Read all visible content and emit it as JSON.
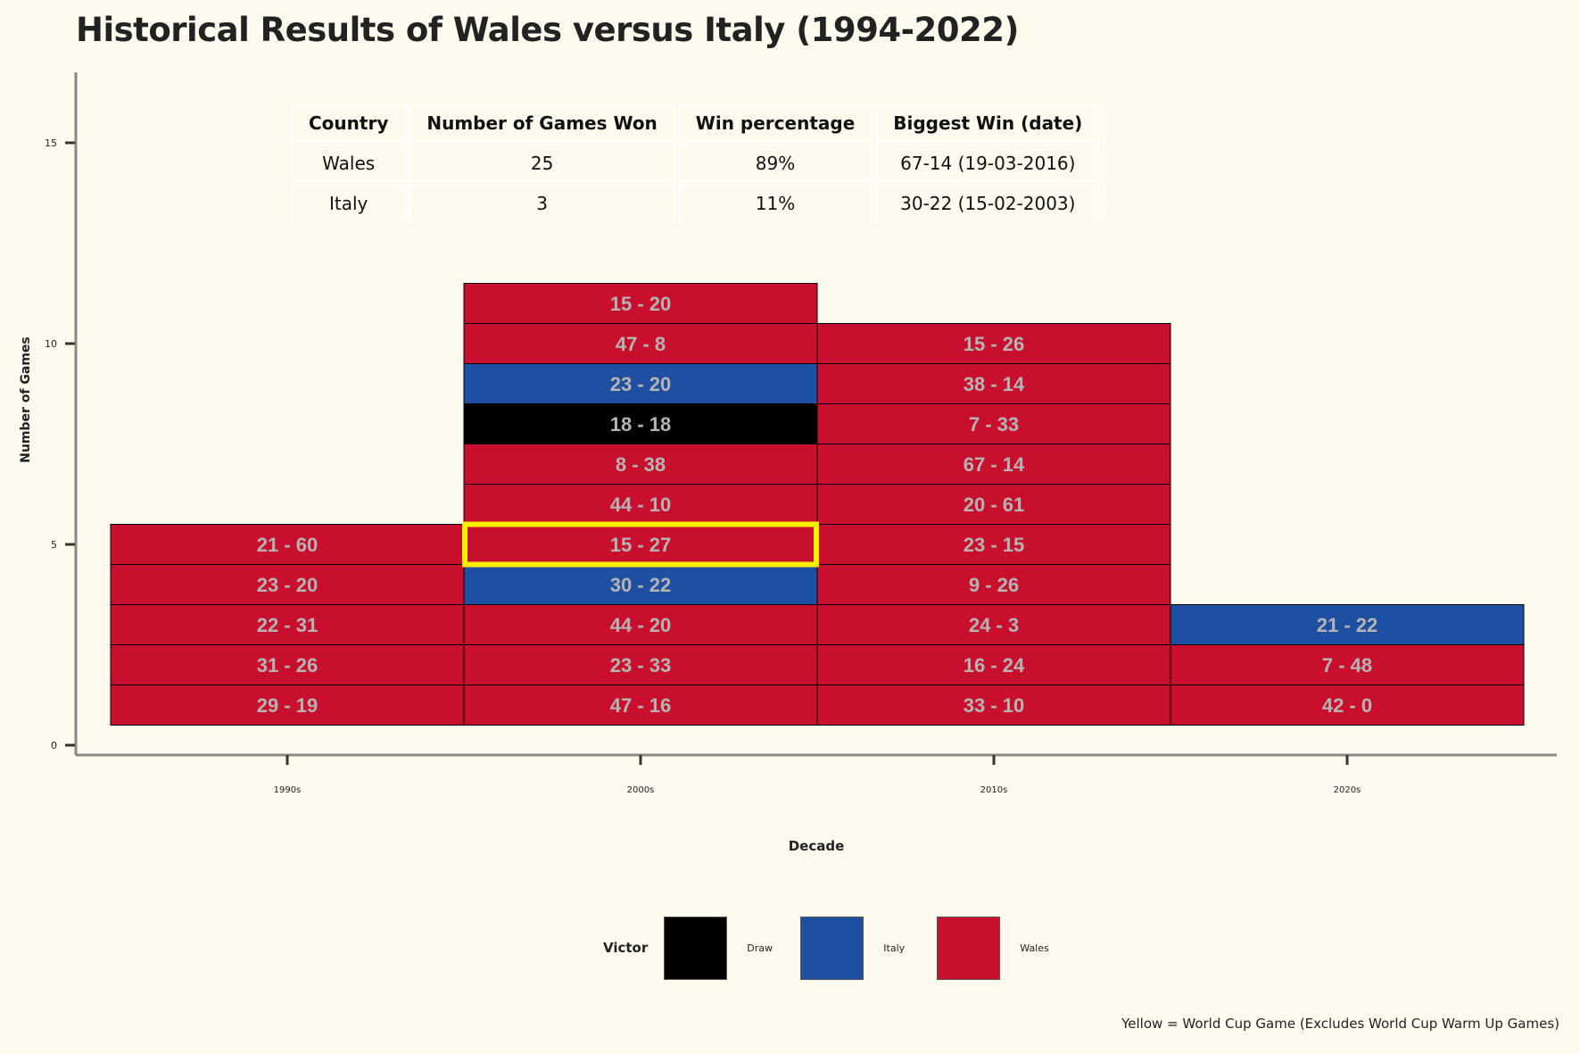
{
  "chart_data": {
    "type": "bar",
    "subtype": "stacked-tile",
    "title": "Historical Results of Wales versus Italy (1994-2022)",
    "xlabel": "Decade",
    "ylabel": "Number of Games",
    "categories": [
      "1990s",
      "2000s",
      "2010s",
      "2020s"
    ],
    "y_ticks": [
      0,
      5,
      10,
      15
    ],
    "ylim": [
      0,
      17
    ],
    "grid": false,
    "legend": {
      "title": "Victor",
      "placement": "bottom",
      "entries": [
        {
          "label": "Draw",
          "color": "#000000"
        },
        {
          "label": "Italy",
          "color": "#1f4fa0"
        },
        {
          "label": "Wales",
          "color": "#c8102e"
        }
      ]
    },
    "colors": {
      "Wales": "#c8102e",
      "Italy": "#1f4fa0",
      "Draw": "#000000",
      "world_cup_outline": "#ffee00"
    },
    "games": {
      "1990s": [
        {
          "score": "29 - 19",
          "victor": "Wales"
        },
        {
          "score": "31 - 26",
          "victor": "Wales"
        },
        {
          "score": "22 - 31",
          "victor": "Wales"
        },
        {
          "score": "23 - 20",
          "victor": "Wales"
        },
        {
          "score": "21 - 60",
          "victor": "Wales"
        }
      ],
      "2000s": [
        {
          "score": "47 - 16",
          "victor": "Wales"
        },
        {
          "score": "23 - 33",
          "victor": "Wales"
        },
        {
          "score": "44 - 20",
          "victor": "Wales"
        },
        {
          "score": "30 - 22",
          "victor": "Italy"
        },
        {
          "score": "15 - 27",
          "victor": "Wales",
          "world_cup": true
        },
        {
          "score": "44 - 10",
          "victor": "Wales"
        },
        {
          "score": "8 - 38",
          "victor": "Wales"
        },
        {
          "score": "18 - 18",
          "victor": "Draw"
        },
        {
          "score": "23 - 20",
          "victor": "Italy"
        },
        {
          "score": "47 - 8",
          "victor": "Wales"
        },
        {
          "score": "15 - 20",
          "victor": "Wales"
        }
      ],
      "2010s": [
        {
          "score": "33 - 10",
          "victor": "Wales"
        },
        {
          "score": "16 - 24",
          "victor": "Wales"
        },
        {
          "score": "24 - 3",
          "victor": "Wales"
        },
        {
          "score": "9 - 26",
          "victor": "Wales"
        },
        {
          "score": "23 - 15",
          "victor": "Wales"
        },
        {
          "score": "20 - 61",
          "victor": "Wales"
        },
        {
          "score": "67 - 14",
          "victor": "Wales"
        },
        {
          "score": "7 - 33",
          "victor": "Wales"
        },
        {
          "score": "38 - 14",
          "victor": "Wales"
        },
        {
          "score": "15 - 26",
          "victor": "Wales"
        }
      ],
      "2020s": [
        {
          "score": "42 - 0",
          "victor": "Wales"
        },
        {
          "score": "7 - 48",
          "victor": "Wales"
        },
        {
          "score": "21 - 22",
          "victor": "Italy"
        }
      ]
    },
    "caption": "Yellow = World Cup Game (Excludes World Cup Warm Up Games)"
  },
  "summary_table": {
    "headers": [
      "Country",
      "Number of Games Won",
      "Win percentage",
      "Biggest Win (date)"
    ],
    "rows": [
      [
        "Wales",
        "25",
        "89%",
        "67-14 (19-03-2016)"
      ],
      [
        "Italy",
        "3",
        "11%",
        "30-22 (15-02-2003)"
      ]
    ]
  }
}
